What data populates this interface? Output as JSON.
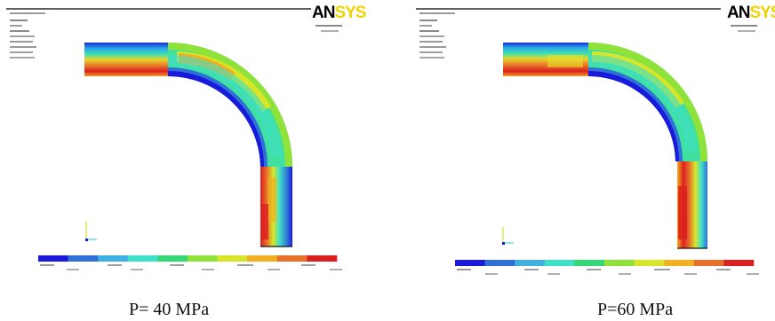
{
  "panels": [
    {
      "id": "left",
      "logo": "ANSYS",
      "caption": "P= 40 MPa",
      "legend_colors": [
        "#1a1adc",
        "#2e6fd8",
        "#3fb0e0",
        "#3fe0c8",
        "#34d878",
        "#8ee23a",
        "#d8e62a",
        "#f0b020",
        "#e8702a",
        "#dc2020"
      ]
    },
    {
      "id": "right",
      "logo": "ANSYS",
      "caption": "P=60 MPa",
      "legend_colors": [
        "#1a1adc",
        "#2e6fd8",
        "#3fb0e0",
        "#3fe0c8",
        "#34d878",
        "#8ee23a",
        "#d8e62a",
        "#f0b020",
        "#e8702a",
        "#dc2020"
      ]
    }
  ]
}
